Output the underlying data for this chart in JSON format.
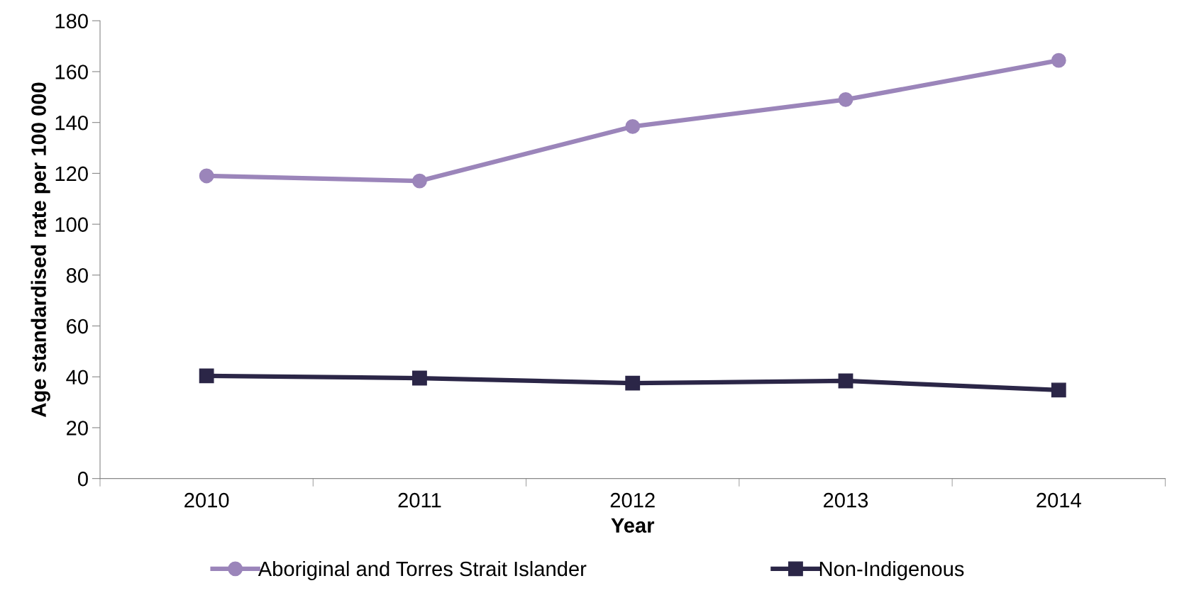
{
  "chart_data": {
    "type": "line",
    "xlabel": "Year",
    "ylabel": "Age standardised rate per 100 000",
    "categories": [
      "2010",
      "2011",
      "2012",
      "2013",
      "2014"
    ],
    "series": [
      {
        "name": "Aboriginal and Torres Strait Islander",
        "color": "#9b85ba",
        "marker": "circle",
        "values": [
          119,
          117,
          138.4,
          149,
          164.4
        ]
      },
      {
        "name": "Non-Indigenous",
        "color": "#2b2647",
        "marker": "square",
        "values": [
          40.4,
          39.5,
          37.5,
          38.4,
          34.8
        ]
      }
    ],
    "ylim": [
      0,
      180
    ],
    "yticks": [
      0,
      20,
      40,
      60,
      80,
      100,
      120,
      140,
      160,
      180
    ],
    "grid": false,
    "legend": "bottom",
    "line_style": "solid"
  }
}
